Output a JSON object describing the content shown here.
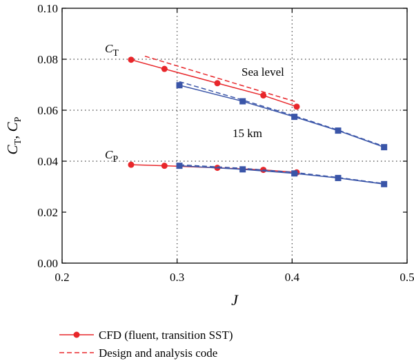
{
  "chart_data": {
    "type": "line",
    "xlabel": "J",
    "ylabel": "C_T, C_P",
    "xlim": [
      0.2,
      0.5
    ],
    "ylim": [
      0.0,
      0.1
    ],
    "xticks": [
      "0.2",
      "0.3",
      "0.4",
      "0.5"
    ],
    "yticks": [
      "0.00",
      "0.02",
      "0.04",
      "0.06",
      "0.08",
      "0.10"
    ],
    "grid": "dotted at x = 0.3, 0.4 and y = 0.04, 0.06, 0.08",
    "legend_position": "bottom-left, below plot",
    "annotations": {
      "ct_label": "C",
      "ct_sub": "T",
      "cp_label": "C",
      "cp_sub": "P",
      "sea_level": "Sea level",
      "km15": "15 km"
    },
    "series": [
      {
        "name": "CFD (fluent, transition SST)",
        "group": "CT sea level",
        "color": "#e8262a",
        "style": "solid",
        "marker": "circle",
        "x": [
          0.26,
          0.289,
          0.335,
          0.375,
          0.404
        ],
        "y": [
          0.0798,
          0.0762,
          0.0706,
          0.0658,
          0.0614
        ]
      },
      {
        "name": "Design and analysis code",
        "group": "CT sea level",
        "color": "#e8262a",
        "style": "dashed",
        "marker": "none",
        "x": [
          0.272,
          0.404
        ],
        "y": [
          0.0812,
          0.0632
        ]
      },
      {
        "name": "CFD (fluent, transition SST)",
        "group": "CT 15 km",
        "color": "#3a55a8",
        "style": "solid",
        "marker": "square",
        "x": [
          0.302,
          0.357,
          0.402,
          0.44,
          0.48
        ],
        "y": [
          0.0698,
          0.0635,
          0.0574,
          0.052,
          0.0455
        ]
      },
      {
        "name": "Design and analysis code",
        "group": "CT 15 km",
        "color": "#3a55a8",
        "style": "dashed",
        "marker": "none",
        "x": [
          0.302,
          0.357,
          0.402,
          0.44,
          0.48
        ],
        "y": [
          0.0712,
          0.064,
          0.0578,
          0.0522,
          0.0458
        ]
      },
      {
        "name": "CFD (fluent, transition SST)",
        "group": "CP sea level",
        "color": "#e8262a",
        "style": "solid",
        "marker": "circle",
        "x": [
          0.26,
          0.289,
          0.335,
          0.375,
          0.404
        ],
        "y": [
          0.0386,
          0.0382,
          0.0374,
          0.0366,
          0.0356
        ]
      },
      {
        "name": "CFD (fluent, transition SST)",
        "group": "CP 15 km",
        "color": "#3a55a8",
        "style": "solid",
        "marker": "square",
        "x": [
          0.302,
          0.357,
          0.402,
          0.44,
          0.48
        ],
        "y": [
          0.0382,
          0.0368,
          0.0352,
          0.0334,
          0.031
        ]
      },
      {
        "name": "Design and analysis code",
        "group": "CP 15 km",
        "color": "#3a55a8",
        "style": "dashed",
        "marker": "none",
        "x": [
          0.302,
          0.357,
          0.402,
          0.44,
          0.48
        ],
        "y": [
          0.0386,
          0.0372,
          0.0356,
          0.0336,
          0.0312
        ]
      }
    ],
    "legend": [
      {
        "label": "CFD (fluent, transition SST)",
        "color": "#e8262a",
        "style": "solid",
        "marker": "circle"
      },
      {
        "label": "Design and analysis code",
        "color": "#e8262a",
        "style": "dashed",
        "marker": "none"
      }
    ]
  }
}
